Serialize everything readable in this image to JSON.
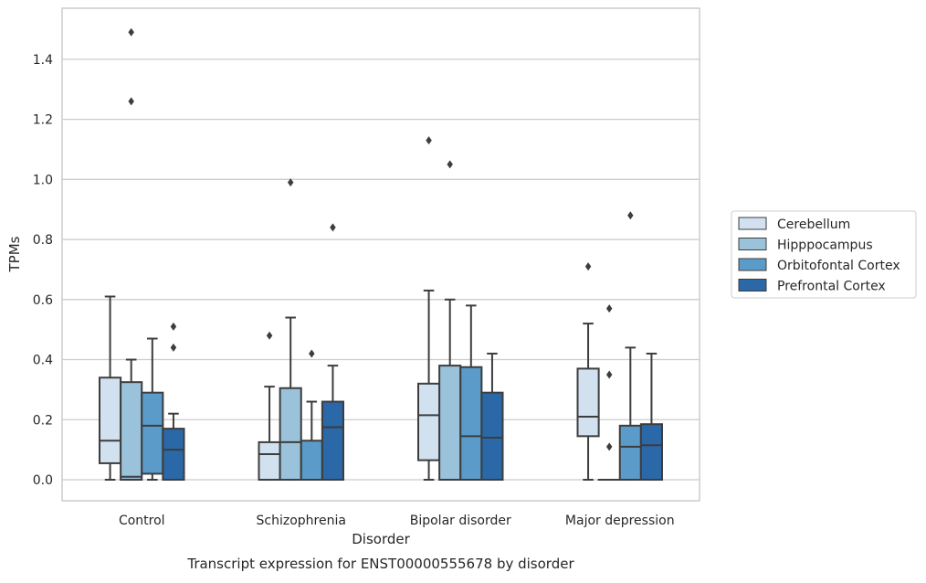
{
  "caption": "Transcript expression for ENST00000555678 by disorder",
  "chart_data": {
    "type": "box",
    "xlabel": "Disorder",
    "ylabel": "TPMs",
    "ylim": [
      -0.07,
      1.57
    ],
    "yticks": [
      0.0,
      0.2,
      0.4,
      0.6,
      0.8,
      1.0,
      1.2,
      1.4
    ],
    "ytick_labels": [
      "0.0",
      "0.2",
      "0.4",
      "0.6",
      "0.8",
      "1.0",
      "1.2",
      "1.4"
    ],
    "grid": true,
    "legend_position": "right",
    "categories": [
      "Control",
      "Schizophrenia",
      "Bipolar disorder",
      "Major depression"
    ],
    "series": [
      {
        "name": "Cerebellum",
        "color": "#d1e1f0",
        "boxes": [
          {
            "q1": 0.055,
            "median": 0.13,
            "q3": 0.34,
            "whisker_low": 0.0,
            "whisker_high": 0.61,
            "outliers": []
          },
          {
            "q1": 0.0,
            "median": 0.085,
            "q3": 0.125,
            "whisker_low": 0.0,
            "whisker_high": 0.31,
            "outliers": [
              0.48
            ]
          },
          {
            "q1": 0.065,
            "median": 0.215,
            "q3": 0.32,
            "whisker_low": 0.0,
            "whisker_high": 0.63,
            "outliers": [
              1.13
            ]
          },
          {
            "q1": 0.145,
            "median": 0.21,
            "q3": 0.37,
            "whisker_low": 0.0,
            "whisker_high": 0.52,
            "outliers": [
              0.71
            ]
          }
        ]
      },
      {
        "name": "Hipppocampus",
        "color": "#9ac2db",
        "boxes": [
          {
            "q1": 0.0,
            "median": 0.01,
            "q3": 0.325,
            "whisker_low": 0.0,
            "whisker_high": 0.4,
            "outliers": [
              1.26,
              1.49
            ]
          },
          {
            "q1": 0.0,
            "median": 0.125,
            "q3": 0.305,
            "whisker_low": 0.0,
            "whisker_high": 0.54,
            "outliers": [
              0.99
            ]
          },
          {
            "q1": 0.0,
            "median": 0.0,
            "q3": 0.38,
            "whisker_low": 0.0,
            "whisker_high": 0.6,
            "outliers": [
              1.05
            ]
          },
          {
            "q1": 0.0,
            "median": 0.0,
            "q3": 0.0,
            "whisker_low": 0.0,
            "whisker_high": 0.0,
            "outliers": [
              0.11,
              0.35,
              0.57
            ]
          }
        ]
      },
      {
        "name": "Orbitofontal Cortex",
        "color": "#5a9bc9",
        "boxes": [
          {
            "q1": 0.02,
            "median": 0.18,
            "q3": 0.29,
            "whisker_low": 0.0,
            "whisker_high": 0.47,
            "outliers": []
          },
          {
            "q1": 0.0,
            "median": 0.0,
            "q3": 0.13,
            "whisker_low": 0.0,
            "whisker_high": 0.26,
            "outliers": [
              0.42
            ]
          },
          {
            "q1": 0.0,
            "median": 0.145,
            "q3": 0.375,
            "whisker_low": 0.0,
            "whisker_high": 0.58,
            "outliers": []
          },
          {
            "q1": 0.0,
            "median": 0.11,
            "q3": 0.18,
            "whisker_low": 0.0,
            "whisker_high": 0.44,
            "outliers": [
              0.88
            ]
          }
        ]
      },
      {
        "name": "Prefrontal Cortex",
        "color": "#2a68a8",
        "boxes": [
          {
            "q1": 0.0,
            "median": 0.1,
            "q3": 0.17,
            "whisker_low": 0.0,
            "whisker_high": 0.22,
            "outliers": [
              0.44,
              0.51
            ]
          },
          {
            "q1": 0.0,
            "median": 0.175,
            "q3": 0.26,
            "whisker_low": 0.0,
            "whisker_high": 0.38,
            "outliers": [
              0.84
            ]
          },
          {
            "q1": 0.0,
            "median": 0.14,
            "q3": 0.29,
            "whisker_low": 0.0,
            "whisker_high": 0.42,
            "outliers": []
          },
          {
            "q1": 0.0,
            "median": 0.115,
            "q3": 0.185,
            "whisker_low": 0.0,
            "whisker_high": 0.42,
            "outliers": []
          }
        ]
      }
    ]
  }
}
